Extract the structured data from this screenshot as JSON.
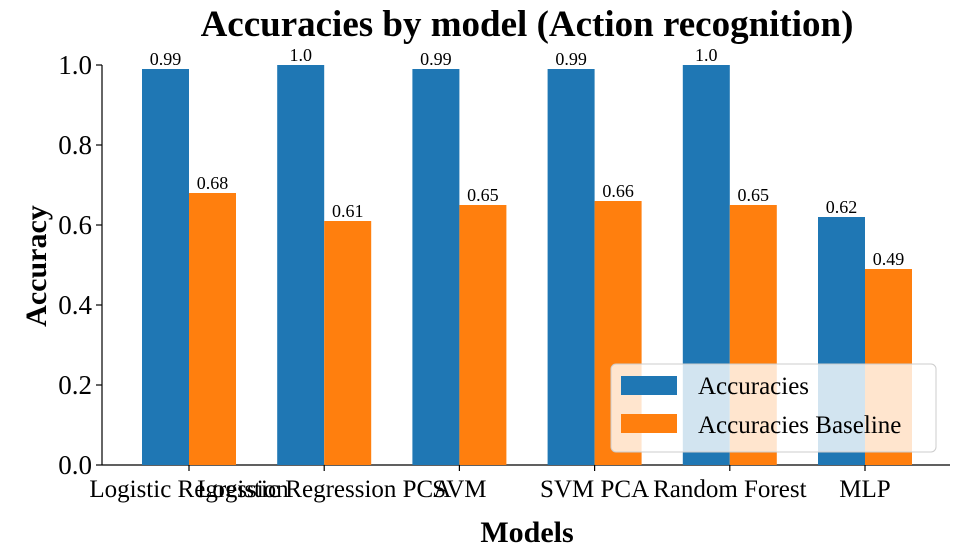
{
  "chart_data": {
    "type": "bar",
    "title": "Accuracies by model (Action recognition)",
    "xlabel": "Models",
    "ylabel": "Accuracy",
    "categories": [
      "Logistic Regression",
      "Logistic Regression PCA",
      "SVM",
      "SVM PCA",
      "Random Forest",
      "MLP"
    ],
    "series": [
      {
        "name": "Accuracies",
        "values": [
          0.99,
          1.0,
          0.99,
          0.99,
          1.0,
          0.62
        ],
        "labels": [
          "0.99",
          "1.0",
          "0.99",
          "0.99",
          "1.0",
          "0.62"
        ],
        "color": "#1f77b4"
      },
      {
        "name": "Accuracies Baseline",
        "values": [
          0.68,
          0.61,
          0.65,
          0.66,
          0.65,
          0.49
        ],
        "labels": [
          "0.68",
          "0.61",
          "0.65",
          "0.66",
          "0.65",
          "0.49"
        ],
        "color": "#ff7f0e"
      }
    ],
    "ylim": [
      0,
      1.0
    ],
    "yticks": [
      "0.0",
      "0.2",
      "0.4",
      "0.6",
      "0.8",
      "1.0"
    ],
    "grid": false,
    "legend_position": "lower-right"
  }
}
